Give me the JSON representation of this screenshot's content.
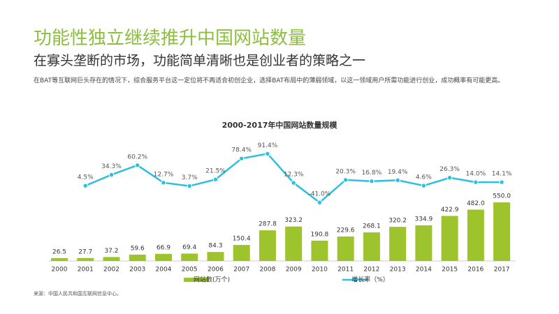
{
  "title": "功能性独立继续推升中国网站数量",
  "subtitle": "在寡头垄断的市场，功能简单清晰也是创业者的策略之一",
  "paragraph": "在BAT等互联网巨头存在的情况下，综合服务平台这一定位将不再适合初创企业，选择BAT布局中的薄弱领域，以这一领域用户所需功能进行创业，成功概率有可能更高。",
  "source": "来源：中国人民共和国互联网信息中心。",
  "chart_data": {
    "type": "bar_line",
    "title": "2000-2017年中国网站数量规模",
    "categories": [
      "2000",
      "2001",
      "2002",
      "2003",
      "2004",
      "2005",
      "2006",
      "2007",
      "2008",
      "2009",
      "2010",
      "2011",
      "2012",
      "2013",
      "2014",
      "2015",
      "2016",
      "2017"
    ],
    "ylim": [
      0,
      1140
    ],
    "y2lim": [
      -200,
      130
    ],
    "series": [
      {
        "name": "网站数(万个)",
        "color": "#9dc42c",
        "values": [
          26.5,
          27.7,
          37.2,
          59.6,
          66.9,
          69.4,
          84.3,
          150.4,
          287.8,
          323.2,
          190.8,
          229.6,
          268.1,
          320.2,
          334.9,
          422.9,
          482.0,
          550.0
        ],
        "value_labels": [
          "26.5",
          "27.7",
          "37.2",
          "59.6",
          "66.9",
          "69.4",
          "84.3",
          "150.4",
          "287.8",
          "323.2",
          "190.8",
          "229.6",
          "268.1",
          "320.2",
          "334.9",
          "422.9",
          "482.0",
          "550.0"
        ]
      },
      {
        "name": "增长率（%）",
        "color": "#2bbfe0",
        "axis": "y2",
        "values": [
          null,
          4.5,
          34.3,
          60.2,
          12.7,
          3.7,
          21.5,
          78.4,
          91.4,
          12.3,
          -41.0,
          20.3,
          16.8,
          19.4,
          4.6,
          26.3,
          14.0,
          14.1
        ],
        "value_labels": [
          null,
          "4.5%",
          "34.3%",
          "60.2%",
          "12.7%",
          "3.7%",
          "21.5%",
          "78.4%",
          "91.4%",
          "12.3%",
          "-41.0%",
          "20.3%",
          "16.8%",
          "19.4%",
          "4.6%",
          "26.3%",
          "14.0%",
          "14.1%"
        ]
      }
    ]
  }
}
